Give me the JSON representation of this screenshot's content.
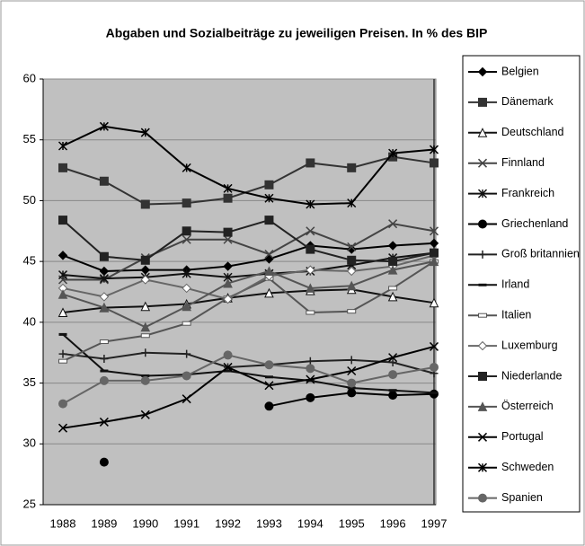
{
  "chart_data": {
    "type": "line",
    "title": "Abgaben und Sozialbeiträge zu jeweiligen Preisen. In % des BIP",
    "categories": [
      "1988",
      "1989",
      "1990",
      "1991",
      "1992",
      "1993",
      "1994",
      "1995",
      "1996",
      "1997"
    ],
    "ylim": [
      25,
      60
    ],
    "yticks": [
      25,
      30,
      35,
      40,
      45,
      50,
      55,
      60
    ],
    "grid": true,
    "legend": "right",
    "series": [
      {
        "name": "Belgien",
        "color": "#000000",
        "marker": "diamond",
        "values": [
          45.5,
          44.2,
          44.3,
          44.3,
          44.6,
          45.2,
          46.3,
          46.0,
          46.3,
          46.5
        ]
      },
      {
        "name": "Dänemark",
        "color": "#333333",
        "marker": "square",
        "values": [
          52.7,
          51.6,
          49.7,
          49.8,
          50.2,
          51.3,
          53.1,
          52.7,
          53.6,
          53.1
        ]
      },
      {
        "name": "Deutschland",
        "color": "#111111",
        "marker": "triangle-open",
        "values": [
          40.8,
          41.2,
          41.3,
          41.5,
          42.0,
          42.4,
          42.6,
          42.7,
          42.1,
          41.6
        ]
      },
      {
        "name": "Finnland",
        "color": "#444444",
        "marker": "x",
        "values": [
          43.5,
          43.5,
          45.3,
          46.8,
          46.8,
          45.6,
          47.5,
          46.2,
          48.1,
          47.5
        ]
      },
      {
        "name": "Frankreich",
        "color": "#111111",
        "marker": "star",
        "values": [
          43.9,
          43.6,
          43.7,
          44.0,
          43.7,
          44.0,
          44.2,
          44.7,
          45.3,
          45.7
        ]
      },
      {
        "name": "Griechenland",
        "color": "#000000",
        "marker": "circle",
        "values": [
          null,
          28.5,
          null,
          null,
          null,
          33.1,
          33.8,
          34.2,
          34.0,
          34.1
        ]
      },
      {
        "name": "Groß britannien",
        "color": "#222222",
        "marker": "plus",
        "values": [
          37.4,
          37.0,
          37.5,
          37.4,
          36.3,
          36.5,
          36.8,
          36.9,
          36.7,
          35.8
        ]
      },
      {
        "name": "Irland",
        "color": "#111111",
        "marker": "dash",
        "values": [
          39.0,
          36.0,
          35.6,
          35.7,
          36.0,
          35.5,
          35.2,
          34.6,
          34.4,
          34.2
        ]
      },
      {
        "name": "Italien",
        "color": "#555555",
        "marker": "rect-open",
        "values": [
          36.8,
          38.4,
          38.9,
          39.9,
          42.0,
          43.6,
          40.8,
          40.9,
          42.8,
          45.0
        ]
      },
      {
        "name": "Luxemburg",
        "color": "#666666",
        "marker": "diamond-open",
        "values": [
          42.8,
          42.1,
          43.5,
          42.8,
          41.9,
          43.8,
          44.3,
          44.2,
          44.6,
          45.5
        ]
      },
      {
        "name": "Niederlande",
        "color": "#222222",
        "marker": "square",
        "values": [
          48.4,
          45.4,
          45.1,
          47.5,
          47.4,
          48.4,
          46.0,
          45.1,
          45.0,
          45.7
        ]
      },
      {
        "name": "Österreich",
        "color": "#555555",
        "marker": "triangle",
        "values": [
          42.3,
          41.2,
          39.6,
          41.3,
          43.2,
          44.2,
          42.8,
          43.0,
          44.3,
          45.0
        ]
      },
      {
        "name": "Portugal",
        "color": "#000000",
        "marker": "x",
        "values": [
          31.3,
          31.8,
          32.4,
          33.7,
          36.3,
          34.8,
          35.3,
          36.0,
          37.1,
          38.0
        ]
      },
      {
        "name": "Schweden",
        "color": "#000000",
        "marker": "star",
        "values": [
          54.5,
          56.1,
          55.6,
          52.7,
          51.0,
          50.2,
          49.7,
          49.8,
          53.9,
          54.2
        ]
      },
      {
        "name": "Spanien",
        "color": "#666666",
        "marker": "circle",
        "values": [
          33.3,
          35.2,
          35.2,
          35.6,
          37.3,
          36.5,
          36.2,
          35.0,
          35.7,
          36.3
        ]
      }
    ]
  }
}
